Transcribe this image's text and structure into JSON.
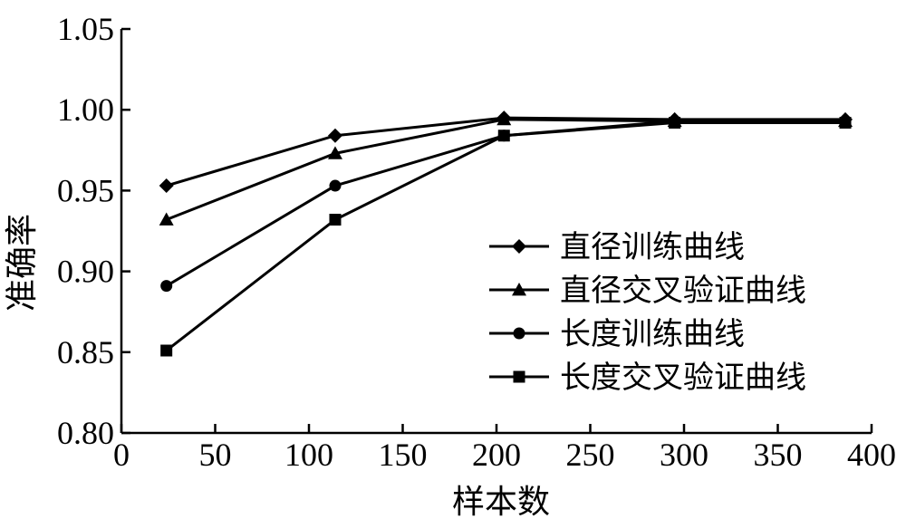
{
  "chart_data": {
    "type": "line",
    "xlabel": "样本数",
    "ylabel": "准确率",
    "xlim": [
      0,
      400
    ],
    "ylim": [
      0.8,
      1.05
    ],
    "xticks": [
      "0",
      "50",
      "100",
      "150",
      "200",
      "250",
      "300",
      "350",
      "400"
    ],
    "yticks": [
      "0.80",
      "0.85",
      "0.90",
      "0.95",
      "1.00",
      "1.05"
    ],
    "grid": false,
    "legend_position": "center-right",
    "x": [
      24,
      114,
      204,
      295,
      386
    ],
    "series": [
      {
        "name": "直径训练曲线",
        "marker": "diamond",
        "values": [
          0.953,
          0.984,
          0.995,
          0.994,
          0.994
        ]
      },
      {
        "name": "直径交叉验证曲线",
        "marker": "triangle",
        "values": [
          0.932,
          0.973,
          0.994,
          0.993,
          0.993
        ]
      },
      {
        "name": "长度训练曲线",
        "marker": "circle",
        "values": [
          0.891,
          0.953,
          0.984,
          0.993,
          0.993
        ]
      },
      {
        "name": "长度交叉验证曲线",
        "marker": "square",
        "values": [
          0.851,
          0.932,
          0.984,
          0.992,
          0.992
        ]
      }
    ]
  }
}
